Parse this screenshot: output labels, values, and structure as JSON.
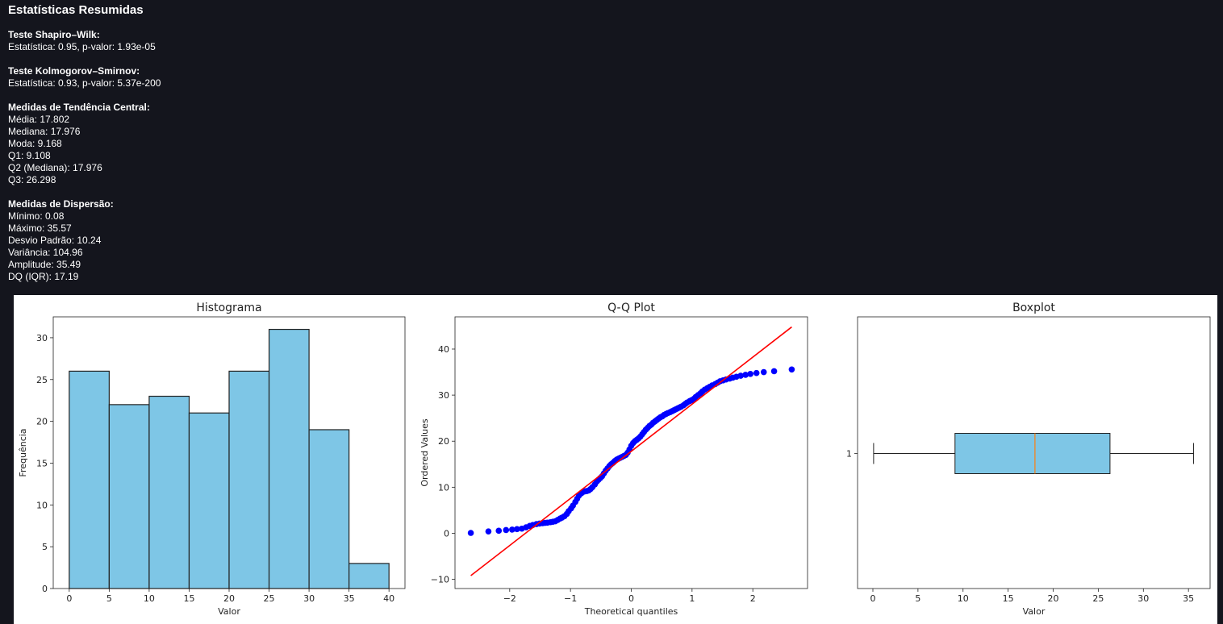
{
  "summary": {
    "title": "Estatísticas Resumidas",
    "sections": [
      {
        "heading": "Teste Shapiro–Wilk:",
        "lines": [
          "Estatística: 0.95, p-valor: 1.93e-05"
        ]
      },
      {
        "heading": "Teste Kolmogorov–Smirnov:",
        "lines": [
          "Estatística: 0.93, p-valor: 5.37e-200"
        ]
      },
      {
        "heading": "Medidas de Tendência Central:",
        "lines": [
          "Média: 17.802",
          "Mediana: 17.976",
          "Moda: 9.168",
          "Q1: 9.108",
          "Q2 (Mediana): 17.976",
          "Q3: 26.298"
        ]
      },
      {
        "heading": "Medidas de Dispersão:",
        "lines": [
          "Mínimo: 0.08",
          "Máximo: 35.57",
          "Desvio Padrão: 10.24",
          "Variância: 104.96",
          "Amplitude: 35.49",
          "DQ (IQR): 17.19"
        ]
      }
    ]
  },
  "chart_data": [
    {
      "type": "bar",
      "title": "Histograma",
      "xlabel": "Valor",
      "ylabel": "Frequência",
      "bin_edges": [
        0,
        5,
        10,
        15,
        20,
        25,
        30,
        35,
        40
      ],
      "values": [
        26,
        22,
        23,
        21,
        26,
        31,
        19,
        3
      ],
      "xlim": [
        -2,
        42
      ],
      "ylim": [
        0,
        32.5
      ],
      "xticks": [
        0,
        5,
        10,
        15,
        20,
        25,
        30,
        35,
        40
      ],
      "yticks": [
        0,
        5,
        10,
        15,
        20,
        25,
        30
      ],
      "bar_color": "#7ec6e6",
      "edge_color": "#222222"
    },
    {
      "type": "scatter",
      "title": "Q-Q Plot",
      "xlabel": "Theoretical quantiles",
      "ylabel": "Ordered Values",
      "xlim": [
        -2.9,
        2.9
      ],
      "ylim": [
        -12,
        47
      ],
      "xticks": [
        -2,
        -1,
        0,
        1,
        2
      ],
      "yticks": [
        -10,
        0,
        10,
        20,
        30,
        40
      ],
      "point_color": "#0000ff",
      "line_color": "#ff0000",
      "fit_line": {
        "x": [
          -2.64,
          2.64
        ],
        "y": [
          -9.2,
          44.8
        ]
      },
      "points": [
        [
          -2.64,
          0.08
        ],
        [
          -2.35,
          0.4
        ],
        [
          -2.18,
          0.55
        ],
        [
          -2.06,
          0.7
        ],
        [
          -1.96,
          0.8
        ],
        [
          -1.88,
          0.9
        ],
        [
          -1.8,
          1.0
        ],
        [
          -1.73,
          1.3
        ],
        [
          -1.67,
          1.6
        ],
        [
          -1.62,
          1.8
        ],
        [
          -1.56,
          2.0
        ],
        [
          -1.51,
          2.1
        ],
        [
          -1.46,
          2.2
        ],
        [
          -1.42,
          2.25
        ],
        [
          -1.38,
          2.3
        ],
        [
          -1.33,
          2.4
        ],
        [
          -1.29,
          2.5
        ],
        [
          -1.25,
          2.6
        ],
        [
          -1.21,
          2.9
        ],
        [
          -1.17,
          3.2
        ],
        [
          -1.14,
          3.4
        ],
        [
          -1.1,
          3.7
        ],
        [
          -1.06,
          4.2
        ],
        [
          -1.03,
          4.8
        ],
        [
          -0.99,
          5.4
        ],
        [
          -0.96,
          6.0
        ],
        [
          -0.92,
          6.8
        ],
        [
          -0.89,
          7.5
        ],
        [
          -0.86,
          8.2
        ],
        [
          -0.82,
          8.7
        ],
        [
          -0.79,
          9.0
        ],
        [
          -0.76,
          9.1
        ],
        [
          -0.73,
          9.17
        ],
        [
          -0.7,
          9.3
        ],
        [
          -0.67,
          9.6
        ],
        [
          -0.64,
          10.0
        ],
        [
          -0.6,
          10.6
        ],
        [
          -0.57,
          11.2
        ],
        [
          -0.54,
          11.6
        ],
        [
          -0.51,
          12.0
        ],
        [
          -0.48,
          12.4
        ],
        [
          -0.45,
          13.0
        ],
        [
          -0.42,
          13.6
        ],
        [
          -0.39,
          14.1
        ],
        [
          -0.36,
          14.6
        ],
        [
          -0.33,
          15.0
        ],
        [
          -0.3,
          15.3
        ],
        [
          -0.27,
          15.7
        ],
        [
          -0.24,
          16.0
        ],
        [
          -0.21,
          16.2
        ],
        [
          -0.18,
          16.4
        ],
        [
          -0.15,
          16.6
        ],
        [
          -0.12,
          16.8
        ],
        [
          -0.09,
          17.0
        ],
        [
          -0.06,
          17.5
        ],
        [
          -0.03,
          18.2
        ],
        [
          0.0,
          19.0
        ],
        [
          0.03,
          19.6
        ],
        [
          0.06,
          20.0
        ],
        [
          0.09,
          20.3
        ],
        [
          0.12,
          20.6
        ],
        [
          0.15,
          21.0
        ],
        [
          0.18,
          21.5
        ],
        [
          0.21,
          22.0
        ],
        [
          0.24,
          22.5
        ],
        [
          0.27,
          22.9
        ],
        [
          0.3,
          23.3
        ],
        [
          0.33,
          23.6
        ],
        [
          0.36,
          24.0
        ],
        [
          0.39,
          24.3
        ],
        [
          0.42,
          24.6
        ],
        [
          0.45,
          24.9
        ],
        [
          0.48,
          25.2
        ],
        [
          0.51,
          25.4
        ],
        [
          0.54,
          25.7
        ],
        [
          0.57,
          25.9
        ],
        [
          0.6,
          26.1
        ],
        [
          0.64,
          26.3
        ],
        [
          0.67,
          26.5
        ],
        [
          0.7,
          26.7
        ],
        [
          0.73,
          26.9
        ],
        [
          0.76,
          27.1
        ],
        [
          0.79,
          27.3
        ],
        [
          0.82,
          27.5
        ],
        [
          0.86,
          27.8
        ],
        [
          0.89,
          28.1
        ],
        [
          0.92,
          28.4
        ],
        [
          0.96,
          28.7
        ],
        [
          0.99,
          28.9
        ],
        [
          1.03,
          29.2
        ],
        [
          1.06,
          29.6
        ],
        [
          1.1,
          30.0
        ],
        [
          1.14,
          30.4
        ],
        [
          1.17,
          30.8
        ],
        [
          1.21,
          31.2
        ],
        [
          1.25,
          31.5
        ],
        [
          1.29,
          31.8
        ],
        [
          1.33,
          32.1
        ],
        [
          1.38,
          32.4
        ],
        [
          1.42,
          32.7
        ],
        [
          1.46,
          33.0
        ],
        [
          1.51,
          33.2
        ],
        [
          1.56,
          33.4
        ],
        [
          1.62,
          33.6
        ],
        [
          1.67,
          33.8
        ],
        [
          1.73,
          34.0
        ],
        [
          1.8,
          34.2
        ],
        [
          1.88,
          34.4
        ],
        [
          1.96,
          34.6
        ],
        [
          2.06,
          34.8
        ],
        [
          2.18,
          35.0
        ],
        [
          2.35,
          35.2
        ],
        [
          2.64,
          35.57
        ]
      ]
    },
    {
      "type": "box",
      "title": "Boxplot",
      "xlabel": "Valor",
      "xlim": [
        -1.7,
        37.4
      ],
      "xticks": [
        0,
        5,
        10,
        15,
        20,
        25,
        30,
        35
      ],
      "ytick_label": "1",
      "min": 0.08,
      "q1": 9.108,
      "median": 17.976,
      "q3": 26.298,
      "max": 35.57,
      "box_color": "#7ec6e6",
      "median_color": "#ff7f0e"
    }
  ]
}
